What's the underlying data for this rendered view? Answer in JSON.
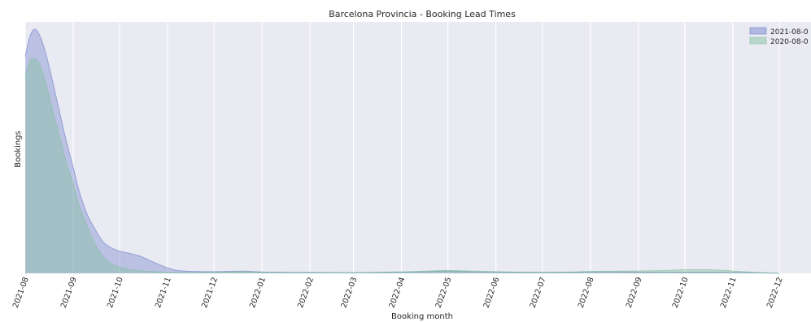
{
  "chart_data": {
    "type": "area",
    "title": "Barcelona Provincia - Booking  Lead Times",
    "xlabel": "Booking  month",
    "ylabel": "Bookings",
    "x_ticks": [
      "2021-08",
      "2021-09",
      "2021-10",
      "2021-11",
      "2021-12",
      "2022-01",
      "2022-02",
      "2022-03",
      "2022-04",
      "2022-05",
      "2022-06",
      "2022-07",
      "2022-08",
      "2022-09",
      "2022-10",
      "2022-11",
      "2022-12"
    ],
    "xlim": [
      "2021-08-01",
      "2022-12-01"
    ],
    "ylim": [
      0,
      1.0
    ],
    "y_ticks_shown": false,
    "grid": "vertical",
    "legend": "top-right",
    "series": [
      {
        "name": "2021-08-0",
        "color": "#6d7fc9",
        "x": [
          "2021-08-01",
          "2021-08-04",
          "2021-08-07",
          "2021-08-10",
          "2021-08-13",
          "2021-08-16",
          "2021-08-19",
          "2021-08-23",
          "2021-08-27",
          "2021-09-01",
          "2021-09-05",
          "2021-09-10",
          "2021-09-15",
          "2021-09-20",
          "2021-09-25",
          "2021-10-01",
          "2021-10-08",
          "2021-10-15",
          "2021-10-22",
          "2021-11-01",
          "2021-11-10",
          "2021-12-01",
          "2021-12-20",
          "2022-01-05",
          "2022-02-01",
          "2022-03-01",
          "2022-04-01",
          "2022-04-20",
          "2022-05-01",
          "2022-05-20",
          "2022-06-15",
          "2022-07-15",
          "2022-08-01",
          "2022-08-20",
          "2022-09-15",
          "2022-10-01",
          "2022-10-20",
          "2022-11-10",
          "2022-12-01"
        ],
        "values": [
          0.88,
          0.96,
          0.99,
          0.97,
          0.92,
          0.85,
          0.77,
          0.66,
          0.55,
          0.43,
          0.33,
          0.24,
          0.18,
          0.13,
          0.105,
          0.09,
          0.08,
          0.068,
          0.048,
          0.022,
          0.01,
          0.007,
          0.009,
          0.005,
          0.004,
          0.003,
          0.005,
          0.008,
          0.009,
          0.006,
          0.004,
          0.004,
          0.006,
          0.006,
          0.004,
          0.005,
          0.005,
          0.003,
          0.0
        ]
      },
      {
        "name": "2020-08-0",
        "color": "#7fbf9a",
        "x": [
          "2021-08-01",
          "2021-08-04",
          "2021-08-07",
          "2021-08-10",
          "2021-08-13",
          "2021-08-16",
          "2021-08-19",
          "2021-08-23",
          "2021-08-27",
          "2021-09-01",
          "2021-09-05",
          "2021-09-10",
          "2021-09-15",
          "2021-09-20",
          "2021-09-25",
          "2021-10-01",
          "2021-10-08",
          "2021-10-15",
          "2021-10-22",
          "2021-11-01",
          "2021-11-10",
          "2021-12-01",
          "2021-12-20",
          "2022-01-05",
          "2022-02-01",
          "2022-03-01",
          "2022-04-01",
          "2022-04-20",
          "2022-05-01",
          "2022-05-20",
          "2022-06-15",
          "2022-07-15",
          "2022-08-01",
          "2022-08-20",
          "2022-09-15",
          "2022-10-01",
          "2022-10-20",
          "2022-11-10",
          "2022-12-01"
        ],
        "values": [
          0.8,
          0.86,
          0.87,
          0.85,
          0.8,
          0.73,
          0.65,
          0.56,
          0.46,
          0.36,
          0.27,
          0.19,
          0.12,
          0.07,
          0.04,
          0.025,
          0.015,
          0.01,
          0.007,
          0.004,
          0.003,
          0.004,
          0.006,
          0.004,
          0.003,
          0.003,
          0.006,
          0.01,
          0.012,
          0.009,
          0.005,
          0.005,
          0.008,
          0.009,
          0.011,
          0.015,
          0.014,
          0.006,
          0.0
        ]
      }
    ]
  },
  "colors": {
    "plot_background": "#eaeaf2",
    "grid": "#ffffff"
  }
}
